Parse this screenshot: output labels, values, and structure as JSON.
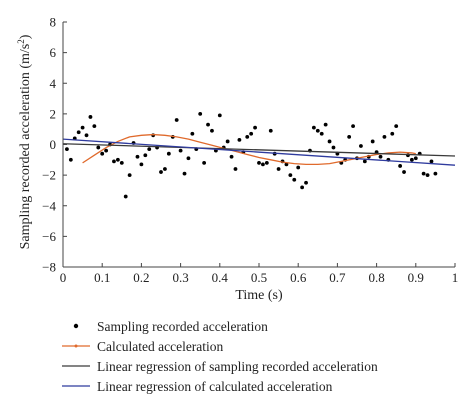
{
  "chart_data": {
    "type": "scatter",
    "xlabel": "Time (s)",
    "ylabel": "Sampling recorded acceleration (m/s",
    "ylabel_sup": "2",
    "ylabel_close": ")",
    "xlim": [
      0,
      1
    ],
    "ylim": [
      -8,
      8
    ],
    "x_ticks": [
      "0",
      "0.1",
      "0.2",
      "0.3",
      "0.4",
      "0.5",
      "0.6",
      "0.7",
      "0.8",
      "0.9",
      "1"
    ],
    "y_ticks": [
      "8",
      "6",
      "4",
      "2",
      "0",
      "−2",
      "−4",
      "−6",
      "−8"
    ],
    "grid": false,
    "legend_position": "below",
    "series": [
      {
        "name": "Sampling recorded acceleration",
        "kind": "scatter",
        "color": "#000000",
        "points": [
          [
            0.01,
            -0.3
          ],
          [
            0.02,
            -1.0
          ],
          [
            0.03,
            0.4
          ],
          [
            0.04,
            0.8
          ],
          [
            0.05,
            1.1
          ],
          [
            0.06,
            0.6
          ],
          [
            0.07,
            1.8
          ],
          [
            0.08,
            1.2
          ],
          [
            0.09,
            -0.2
          ],
          [
            0.1,
            -0.6
          ],
          [
            0.11,
            -0.4
          ],
          [
            0.12,
            0.0
          ],
          [
            0.13,
            -1.1
          ],
          [
            0.14,
            -1.0
          ],
          [
            0.15,
            -1.2
          ],
          [
            0.16,
            -3.4
          ],
          [
            0.17,
            -2.0
          ],
          [
            0.18,
            0.1
          ],
          [
            0.19,
            -0.8
          ],
          [
            0.2,
            -1.3
          ],
          [
            0.21,
            -0.7
          ],
          [
            0.22,
            -0.3
          ],
          [
            0.23,
            0.6
          ],
          [
            0.24,
            -0.2
          ],
          [
            0.25,
            -1.8
          ],
          [
            0.26,
            -1.6
          ],
          [
            0.27,
            -0.6
          ],
          [
            0.28,
            0.5
          ],
          [
            0.29,
            1.6
          ],
          [
            0.3,
            -0.4
          ],
          [
            0.31,
            -1.9
          ],
          [
            0.32,
            -0.9
          ],
          [
            0.33,
            0.7
          ],
          [
            0.34,
            -0.3
          ],
          [
            0.35,
            2.0
          ],
          [
            0.36,
            -1.2
          ],
          [
            0.37,
            1.3
          ],
          [
            0.38,
            0.9
          ],
          [
            0.39,
            -0.4
          ],
          [
            0.4,
            1.9
          ],
          [
            0.41,
            -0.2
          ],
          [
            0.42,
            0.2
          ],
          [
            0.43,
            -0.8
          ],
          [
            0.44,
            -1.6
          ],
          [
            0.45,
            0.3
          ],
          [
            0.46,
            -0.5
          ],
          [
            0.47,
            0.5
          ],
          [
            0.48,
            0.7
          ],
          [
            0.49,
            1.1
          ],
          [
            0.5,
            -1.2
          ],
          [
            0.51,
            -1.3
          ],
          [
            0.52,
            -1.2
          ],
          [
            0.53,
            0.9
          ],
          [
            0.54,
            -0.6
          ],
          [
            0.55,
            -1.6
          ],
          [
            0.56,
            -1.1
          ],
          [
            0.57,
            -1.3
          ],
          [
            0.58,
            -2.0
          ],
          [
            0.59,
            -2.3
          ],
          [
            0.6,
            -1.5
          ],
          [
            0.61,
            -2.8
          ],
          [
            0.62,
            -2.5
          ],
          [
            0.63,
            -0.4
          ],
          [
            0.64,
            1.1
          ],
          [
            0.65,
            0.9
          ],
          [
            0.66,
            0.7
          ],
          [
            0.67,
            1.3
          ],
          [
            0.68,
            0.2
          ],
          [
            0.69,
            -0.2
          ],
          [
            0.7,
            -0.6
          ],
          [
            0.71,
            -1.2
          ],
          [
            0.72,
            -1.0
          ],
          [
            0.73,
            0.5
          ],
          [
            0.74,
            1.2
          ],
          [
            0.75,
            -0.9
          ],
          [
            0.76,
            -0.1
          ],
          [
            0.77,
            -1.1
          ],
          [
            0.78,
            -0.8
          ],
          [
            0.79,
            0.2
          ],
          [
            0.8,
            -0.5
          ],
          [
            0.81,
            -0.8
          ],
          [
            0.82,
            0.5
          ],
          [
            0.83,
            -1.0
          ],
          [
            0.84,
            0.7
          ],
          [
            0.85,
            1.2
          ],
          [
            0.86,
            -1.4
          ],
          [
            0.87,
            -1.8
          ],
          [
            0.88,
            -0.7
          ],
          [
            0.89,
            -1.0
          ],
          [
            0.9,
            -0.9
          ],
          [
            0.91,
            -0.6
          ],
          [
            0.92,
            -1.9
          ],
          [
            0.93,
            -2.0
          ],
          [
            0.94,
            -1.1
          ],
          [
            0.95,
            -1.9
          ]
        ]
      },
      {
        "name": "Calculated acceleration",
        "kind": "line",
        "color": "#e06a2c",
        "x": [
          0.05,
          0.08,
          0.11,
          0.14,
          0.17,
          0.2,
          0.23,
          0.26,
          0.29,
          0.32,
          0.35,
          0.38,
          0.41,
          0.44,
          0.47,
          0.5,
          0.53,
          0.56,
          0.59,
          0.62,
          0.65,
          0.68,
          0.71,
          0.74,
          0.77,
          0.8,
          0.83,
          0.86,
          0.89,
          0.9
        ],
        "y": [
          -1.2,
          -0.7,
          -0.2,
          0.2,
          0.5,
          0.6,
          0.65,
          0.6,
          0.5,
          0.35,
          0.15,
          -0.05,
          -0.25,
          -0.45,
          -0.65,
          -0.85,
          -1.0,
          -1.15,
          -1.25,
          -1.3,
          -1.3,
          -1.25,
          -1.1,
          -0.95,
          -0.8,
          -0.65,
          -0.55,
          -0.5,
          -0.55,
          -0.6
        ]
      },
      {
        "name": "Linear regression of sampling recorded acceleration",
        "kind": "line",
        "color": "#3a3a3a",
        "x": [
          0,
          1
        ],
        "y": [
          0.05,
          -0.75
        ]
      },
      {
        "name": "Linear regression of calculated acceleration",
        "kind": "line",
        "color": "#2f3b9e",
        "x": [
          0,
          1
        ],
        "y": [
          0.35,
          -1.35
        ]
      }
    ]
  }
}
